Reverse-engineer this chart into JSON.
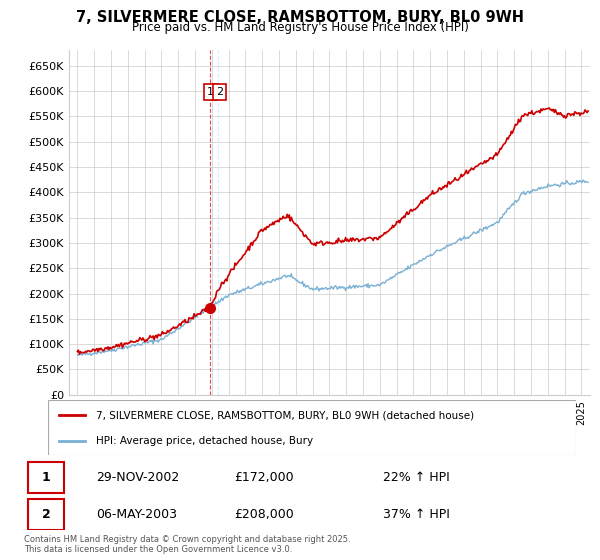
{
  "title": "7, SILVERMERE CLOSE, RAMSBOTTOM, BURY, BL0 9WH",
  "subtitle": "Price paid vs. HM Land Registry's House Price Index (HPI)",
  "ylim": [
    0,
    680000
  ],
  "yticks": [
    0,
    50000,
    100000,
    150000,
    200000,
    250000,
    300000,
    350000,
    400000,
    450000,
    500000,
    550000,
    600000,
    650000
  ],
  "ytick_labels": [
    "£0",
    "£50K",
    "£100K",
    "£150K",
    "£200K",
    "£250K",
    "£300K",
    "£350K",
    "£400K",
    "£450K",
    "£500K",
    "£550K",
    "£600K",
    "£650K"
  ],
  "xlim_start": 1994.5,
  "xlim_end": 2025.5,
  "red_color": "#cc0000",
  "blue_color": "#7ab0d4",
  "dashed_color": "#cc0000",
  "grid_color": "#cccccc",
  "background_color": "#ffffff",
  "legend_label_red": "7, SILVERMERE CLOSE, RAMSBOTTOM, BURY, BL0 9WH (detached house)",
  "legend_label_blue": "HPI: Average price, detached house, Bury",
  "sale1_x": 2002.91,
  "sale1_y": 172000,
  "sale2_x": 2003.37,
  "sale2_y": 208000,
  "annotation_box_color": "#cc0000",
  "footer_text": "Contains HM Land Registry data © Crown copyright and database right 2025.\nThis data is licensed under the Open Government Licence v3.0.",
  "table_rows": [
    [
      "1",
      "29-NOV-2002",
      "£172,000",
      "22% ↑ HPI"
    ],
    [
      "2",
      "06-MAY-2003",
      "£208,000",
      "37% ↑ HPI"
    ]
  ],
  "noise_seed": 42
}
